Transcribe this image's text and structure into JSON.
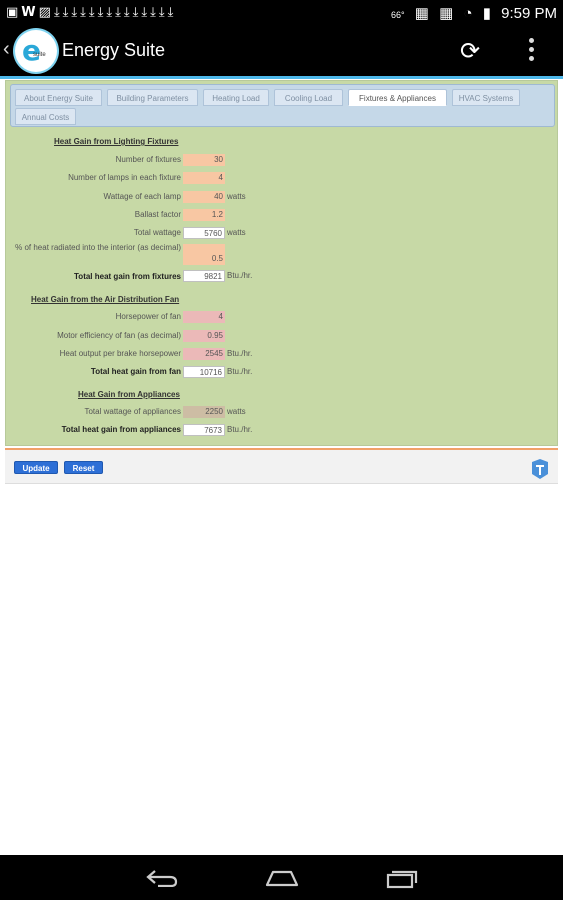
{
  "status_bar": {
    "left_icons": [
      "gallery-icon",
      "w-icon",
      "image-icon",
      "download-icon",
      "download-icon",
      "download-icon",
      "download-icon",
      "download-icon",
      "download-icon",
      "download-icon",
      "download-icon",
      "download-icon",
      "download-icon",
      "download-icon",
      "download-icon",
      "download-icon",
      "download-icon"
    ],
    "temperature": "66°",
    "time": "9:59 PM"
  },
  "action_bar": {
    "title": "Energy Suite",
    "logo_letter": "e",
    "logo_sub": "suite"
  },
  "tabs": [
    {
      "label": "About Energy Suite",
      "active": false
    },
    {
      "label": "Building Parameters",
      "active": false
    },
    {
      "label": "Heating Load",
      "active": false
    },
    {
      "label": "Cooling Load",
      "active": false
    },
    {
      "label": "Fixtures & Appliances",
      "active": true
    },
    {
      "label": "HVAC Systems",
      "active": false
    },
    {
      "label": "Annual Costs",
      "active": false
    }
  ],
  "lighting": {
    "title": "Heat Gain from Lighting Fixtures",
    "rows": [
      {
        "label": "Number of fixtures",
        "value": "30",
        "unit": ""
      },
      {
        "label": "Number of lamps in each fixture",
        "value": "4",
        "unit": ""
      },
      {
        "label": "Wattage of each lamp",
        "value": "40",
        "unit": "watts"
      },
      {
        "label": "Ballast factor",
        "value": "1.2",
        "unit": ""
      },
      {
        "label": "Total wattage",
        "value": "5760",
        "unit": "watts"
      },
      {
        "label": "% of heat radiated into the interior (as decimal)",
        "value": "0.5",
        "unit": ""
      },
      {
        "label": "Total heat gain from fixtures",
        "value": "9821",
        "unit": "Btu./hr."
      }
    ]
  },
  "fan": {
    "title": "Heat Gain from the Air Distribution Fan",
    "rows": [
      {
        "label": "Horsepower of fan",
        "value": "4",
        "unit": ""
      },
      {
        "label": "Motor efficiency of fan (as decimal)",
        "value": "0.95",
        "unit": ""
      },
      {
        "label": "Heat output per brake horsepower",
        "value": "2545",
        "unit": "Btu./hr."
      },
      {
        "label": "Total heat gain from fan",
        "value": "10716",
        "unit": "Btu./hr."
      }
    ]
  },
  "appliances": {
    "title": "Heat Gain from Appliances",
    "rows": [
      {
        "label": "Total wattage of appliances",
        "value": "2250",
        "unit": "watts"
      },
      {
        "label": "Total heat gain from appliances",
        "value": "7673",
        "unit": "Btu./hr."
      }
    ]
  },
  "buttons": {
    "update": "Update",
    "reset": "Reset"
  },
  "colors": {
    "panel_bg": "#c7d9a6",
    "field_orange": "#f8c7a3",
    "field_pink": "#ebb9b8",
    "field_tan": "#cdbda4",
    "button_blue": "#2d6fd6",
    "accent": "#4db8ea"
  }
}
